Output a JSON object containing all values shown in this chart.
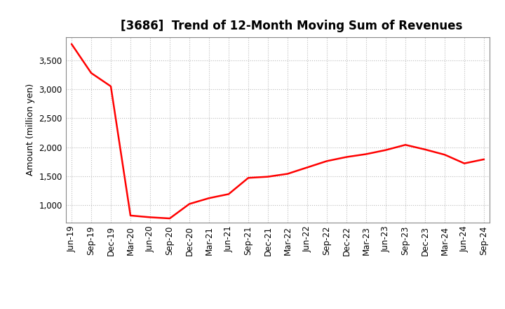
{
  "title": "[3686]  Trend of 12-Month Moving Sum of Revenues",
  "ylabel": "Amount (million yen)",
  "line_color": "#FF0000",
  "background_color": "#FFFFFF",
  "plot_bg_color": "#FFFFFF",
  "grid_color": "#BBBBBB",
  "tick_labels": [
    "Jun-19",
    "Sep-19",
    "Dec-19",
    "Mar-20",
    "Jun-20",
    "Sep-20",
    "Dec-20",
    "Mar-21",
    "Jun-21",
    "Sep-21",
    "Dec-21",
    "Mar-22",
    "Jun-22",
    "Sep-22",
    "Dec-22",
    "Mar-23",
    "Jun-23",
    "Sep-23",
    "Dec-23",
    "Mar-24",
    "Jun-24",
    "Sep-24"
  ],
  "values": [
    3780,
    3280,
    3050,
    820,
    790,
    770,
    1020,
    1120,
    1190,
    1470,
    1490,
    1540,
    1650,
    1760,
    1830,
    1880,
    1950,
    2040,
    1960,
    1870,
    1720,
    1790
  ],
  "ylim": [
    700,
    3900
  ],
  "yticks": [
    1000,
    1500,
    2000,
    2500,
    3000,
    3500
  ],
  "title_fontsize": 12,
  "label_fontsize": 9,
  "tick_fontsize": 8.5,
  "line_width": 1.8
}
